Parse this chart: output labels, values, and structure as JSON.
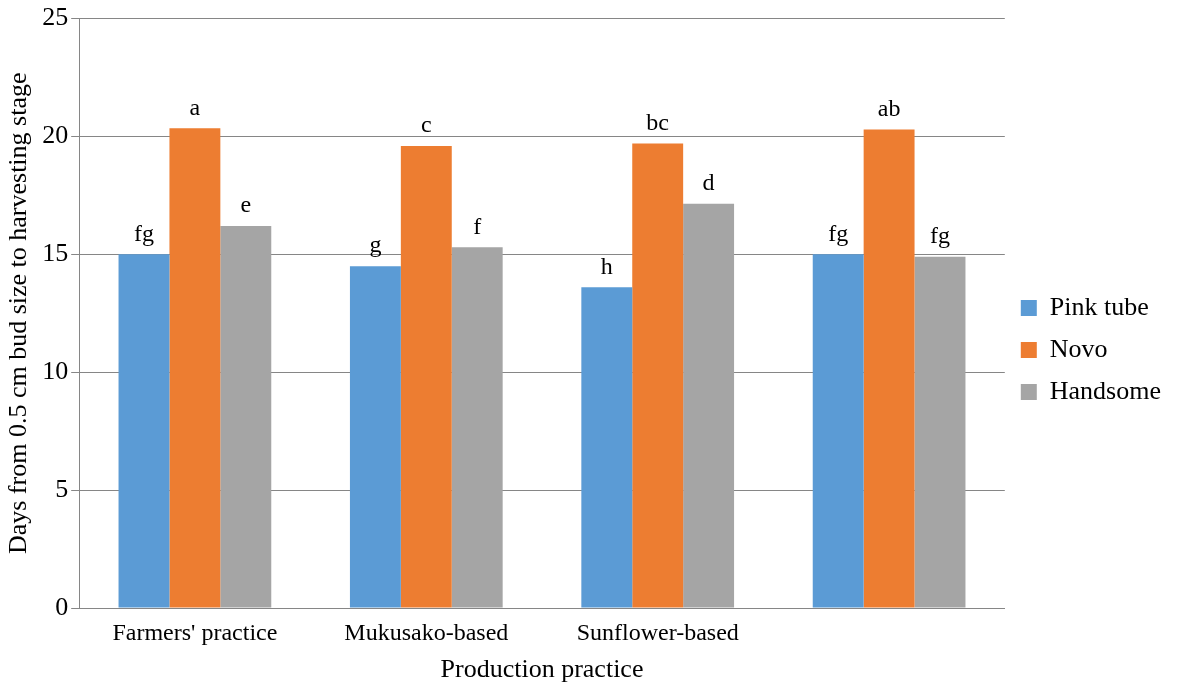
{
  "chart_data": {
    "type": "bar",
    "xlabel": "Production practice",
    "ylabel": "Days from 0.5 cm bud size to harvesting stage",
    "categories": [
      "Farmers' practice",
      "Mukusako-based",
      "Sunflower-based",
      null
    ],
    "series": [
      {
        "name": "Pink tube",
        "color": "#5b9bd5",
        "values": [
          15.0,
          14.5,
          13.6,
          15.0
        ],
        "value_labels": [
          "fg",
          "g",
          "h",
          "fg"
        ]
      },
      {
        "name": "Novo",
        "color": "#ed7d31",
        "values": [
          20.35,
          19.6,
          19.7,
          20.3
        ],
        "value_labels": [
          "a",
          "c",
          "bc",
          "ab"
        ]
      },
      {
        "name": "Handsome",
        "color": "#a5a5a5",
        "values": [
          16.2,
          15.3,
          17.15,
          14.9
        ],
        "value_labels": [
          "e",
          "f",
          "d",
          "fg"
        ]
      }
    ],
    "ylim": [
      0,
      25
    ],
    "yticks": [
      0,
      5,
      10,
      15,
      20,
      25
    ],
    "grid": "y",
    "legend": "right"
  }
}
